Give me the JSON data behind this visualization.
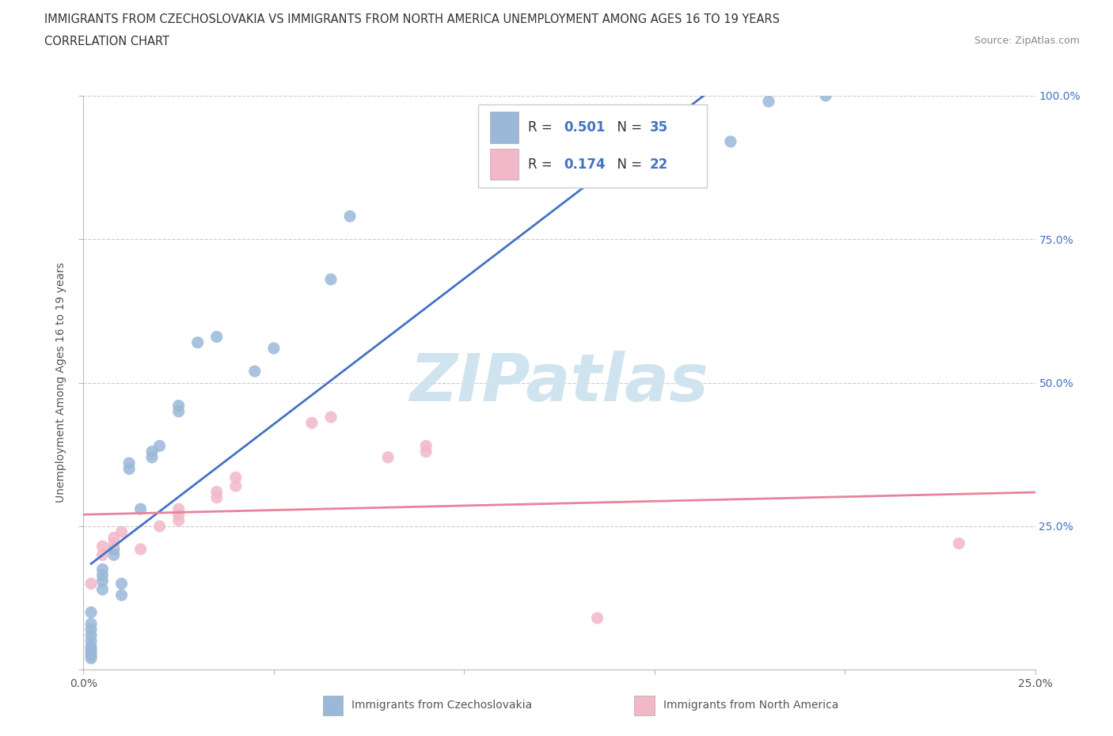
{
  "title_line1": "IMMIGRANTS FROM CZECHOSLOVAKIA VS IMMIGRANTS FROM NORTH AMERICA UNEMPLOYMENT AMONG AGES 16 TO 19 YEARS",
  "title_line2": "CORRELATION CHART",
  "source": "Source: ZipAtlas.com",
  "ylabel": "Unemployment Among Ages 16 to 19 years",
  "xlim": [
    0.0,
    0.25
  ],
  "ylim": [
    0.0,
    1.0
  ],
  "blue_r": "0.501",
  "blue_n": "35",
  "pink_r": "0.174",
  "pink_n": "22",
  "blue_scatter_x": [
    0.002,
    0.002,
    0.002,
    0.002,
    0.002,
    0.002,
    0.002,
    0.002,
    0.002,
    0.002,
    0.005,
    0.005,
    0.005,
    0.005,
    0.008,
    0.008,
    0.01,
    0.01,
    0.012,
    0.012,
    0.015,
    0.018,
    0.018,
    0.02,
    0.025,
    0.025,
    0.03,
    0.035,
    0.045,
    0.05,
    0.065,
    0.07,
    0.17,
    0.18,
    0.195
  ],
  "blue_scatter_y": [
    0.02,
    0.025,
    0.03,
    0.035,
    0.04,
    0.05,
    0.06,
    0.07,
    0.08,
    0.1,
    0.14,
    0.155,
    0.165,
    0.175,
    0.2,
    0.21,
    0.13,
    0.15,
    0.35,
    0.36,
    0.28,
    0.37,
    0.38,
    0.39,
    0.45,
    0.46,
    0.57,
    0.58,
    0.52,
    0.56,
    0.68,
    0.79,
    0.92,
    0.99,
    1.0
  ],
  "pink_scatter_x": [
    0.002,
    0.005,
    0.005,
    0.008,
    0.008,
    0.01,
    0.015,
    0.02,
    0.025,
    0.025,
    0.025,
    0.035,
    0.035,
    0.04,
    0.04,
    0.06,
    0.065,
    0.08,
    0.09,
    0.09,
    0.135,
    0.23
  ],
  "pink_scatter_y": [
    0.15,
    0.2,
    0.215,
    0.22,
    0.23,
    0.24,
    0.21,
    0.25,
    0.26,
    0.27,
    0.28,
    0.3,
    0.31,
    0.32,
    0.335,
    0.43,
    0.44,
    0.37,
    0.38,
    0.39,
    0.09,
    0.22
  ],
  "blue_line_color": "#4472c4",
  "pink_line_color": "#e8839a",
  "blue_dot_color": "#9ab8d8",
  "pink_dot_color": "#f2b8c8",
  "grid_color": "#cccccc",
  "background_color": "#ffffff",
  "watermark_text": "ZIPatlas",
  "watermark_color": "#d0e4f0",
  "right_tick_color": "#4472c4",
  "label_color": "#555555",
  "title_color": "#333333",
  "source_color": "#888888",
  "legend_text_color": "#333333",
  "legend_val_color": "#4472c4",
  "bottom_legend_color": "#555555"
}
